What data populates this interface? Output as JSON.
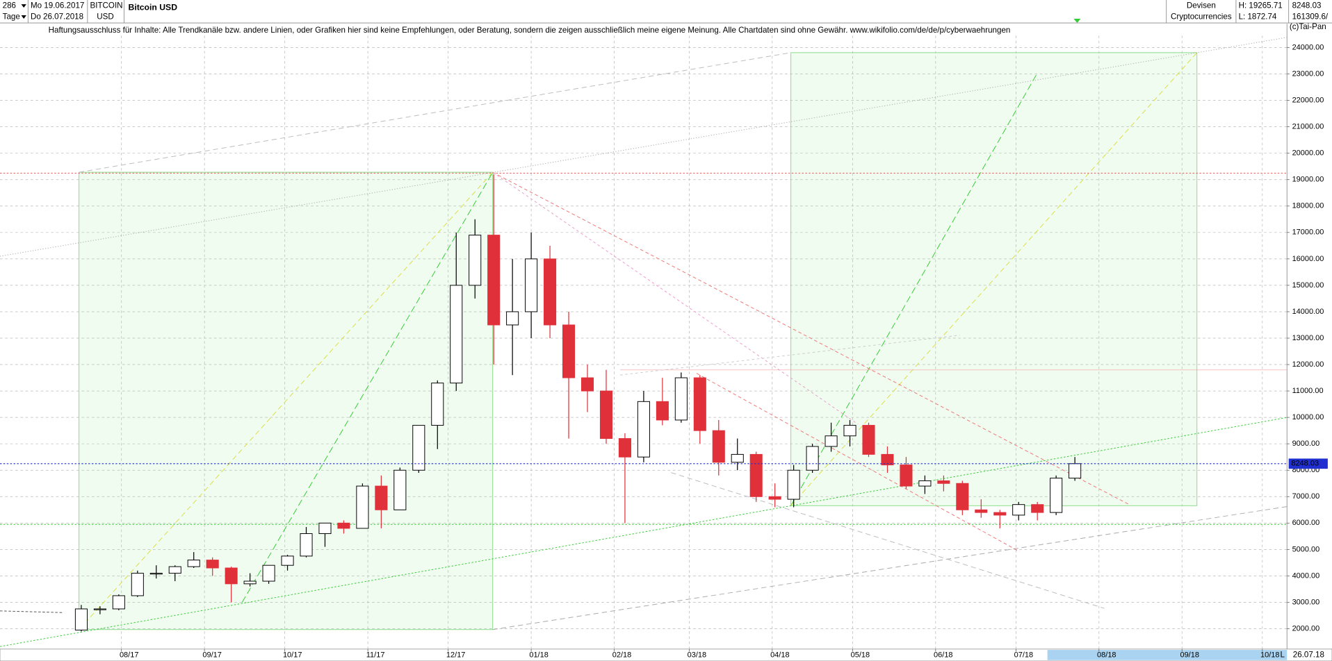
{
  "header": {
    "count": "286",
    "period": "Tage",
    "start": "Mo 19.06.2017",
    "end": "Do 26.07.2018",
    "symbol": "BITCOIN",
    "currency": "USD",
    "group": "Devisen",
    "subgroup": "Cryptocurrencies",
    "high": "H: 19265.71",
    "low": "L: 1872.74",
    "last": "8248.03",
    "volume": "161309.6/",
    "copyright": "(c)Tai-Pan",
    "date": "26.07.18",
    "scale": "L"
  },
  "chart_data": {
    "type": "candlestick",
    "title": "Bitcoin USD",
    "subtitle": "Haftungsausschluss für Inhalte: Alle Trendkanäle bzw. andere Linien, oder Grafiken hier sind keine Empfehlungen, oder Beratung, sondern die zeigen ausschließlich meine eigene Meinung. Alle Chartdaten sind ohne Gewähr.  www.wikifolio.com/de/de/p/cyberwaehrungen",
    "x": [
      28,
      35,
      42,
      49,
      56,
      63,
      70,
      77,
      84,
      91,
      98,
      105,
      112,
      119,
      126,
      133,
      140,
      147,
      154,
      161,
      168,
      175,
      182,
      189,
      196,
      203,
      210,
      217,
      224,
      231,
      238,
      245,
      252,
      259,
      266,
      273,
      280,
      287,
      294,
      301,
      308,
      315,
      322,
      329,
      336,
      343,
      350,
      357,
      364,
      371,
      378,
      385,
      392,
      399
    ],
    "open": [
      1950,
      2750,
      2750,
      3250,
      4100,
      4100,
      4350,
      4600,
      4300,
      3700,
      3800,
      4400,
      4750,
      5600,
      6000,
      5800,
      7400,
      6500,
      8000,
      9700,
      11300,
      15000,
      16900,
      13500,
      14000,
      16000,
      13500,
      11500,
      11000,
      9200,
      8500,
      10600,
      9900,
      11500,
      9500,
      8300,
      8600,
      7000,
      6900,
      8000,
      8900,
      9300,
      9700,
      8600,
      8200,
      7400,
      7600,
      7500,
      6500,
      6400,
      6300,
      6700,
      6400,
      7700
    ],
    "high": [
      2900,
      2850,
      3300,
      4200,
      4400,
      4400,
      4900,
      4700,
      4350,
      4100,
      4400,
      4800,
      5850,
      6000,
      6100,
      7500,
      7800,
      8100,
      9700,
      11400,
      17000,
      17500,
      19200,
      16000,
      17000,
      16500,
      14000,
      12000,
      11800,
      9400,
      11000,
      11500,
      11700,
      11600,
      9900,
      9200,
      8700,
      7500,
      8200,
      9000,
      9800,
      9900,
      9800,
      8900,
      8500,
      7800,
      7800,
      7600,
      6900,
      6500,
      6800,
      6800,
      7800,
      8500
    ],
    "low": [
      1900,
      2550,
      2700,
      3200,
      3900,
      3800,
      4300,
      4000,
      3000,
      3600,
      3700,
      4200,
      4700,
      5100,
      5600,
      5800,
      5800,
      6500,
      7900,
      8800,
      11000,
      14500,
      12000,
      11600,
      13000,
      13000,
      9200,
      10200,
      9000,
      6000,
      8300,
      9700,
      9800,
      9000,
      7800,
      8000,
      6800,
      6600,
      6600,
      7900,
      8700,
      8900,
      8500,
      7900,
      7300,
      7100,
      7200,
      6300,
      6200,
      5800,
      6100,
      6100,
      6300,
      7600
    ],
    "close": [
      2750,
      2750,
      3250,
      4100,
      4100,
      4350,
      4600,
      4300,
      3700,
      3800,
      4400,
      4750,
      5600,
      6000,
      5800,
      7400,
      6500,
      8000,
      9700,
      11300,
      15000,
      16900,
      13500,
      14000,
      16000,
      13500,
      11500,
      11000,
      9200,
      8500,
      10600,
      9900,
      11500,
      9500,
      8300,
      8600,
      7000,
      6900,
      8000,
      8900,
      9300,
      9700,
      8600,
      8200,
      7400,
      7600,
      7500,
      6500,
      6400,
      6300,
      6700,
      6400,
      7700,
      8248.03
    ],
    "up_color": "#000000",
    "down_color": "#e0303a",
    "xlim": [
      -2.35,
      478.2
    ],
    "ylim": [
      1229,
      24450
    ],
    "grid": true,
    "xticks": [
      {
        "value": 43,
        "label": "08/17"
      },
      {
        "value": 74,
        "label": "09/17"
      },
      {
        "value": 104,
        "label": "10/17"
      },
      {
        "value": 135,
        "label": "11/17"
      },
      {
        "value": 165,
        "label": "12/17"
      },
      {
        "value": 196,
        "label": "01/18"
      },
      {
        "value": 227,
        "label": "02/18"
      },
      {
        "value": 255,
        "label": "03/18"
      },
      {
        "value": 286,
        "label": "04/18"
      },
      {
        "value": 316,
        "label": "05/18"
      },
      {
        "value": 347,
        "label": "06/18"
      },
      {
        "value": 377,
        "label": "07/18"
      },
      {
        "value": 408,
        "label": "08/18"
      },
      {
        "value": 439,
        "label": "09/18"
      },
      {
        "value": 469,
        "label": "10/18"
      }
    ],
    "yticks": [
      {
        "value": 2000,
        "label": "2000.00"
      },
      {
        "value": 3000,
        "label": "3000.00"
      },
      {
        "value": 4000,
        "label": "4000.00"
      },
      {
        "value": 5000,
        "label": "5000.00"
      },
      {
        "value": 6000,
        "label": "6000.00"
      },
      {
        "value": 7000,
        "label": "7000.00"
      },
      {
        "value": 8000,
        "label": "8000.00"
      },
      {
        "value": 9000,
        "label": "9000.00"
      },
      {
        "value": 10000,
        "label": "10000.00"
      },
      {
        "value": 11000,
        "label": "11000.00"
      },
      {
        "value": 12000,
        "label": "12000.00"
      },
      {
        "value": 13000,
        "label": "13000.00"
      },
      {
        "value": 14000,
        "label": "14000.00"
      },
      {
        "value": 15000,
        "label": "15000.00"
      },
      {
        "value": 16000,
        "label": "16000.00"
      },
      {
        "value": 17000,
        "label": "17000.00"
      },
      {
        "value": 18000,
        "label": "18000.00"
      },
      {
        "value": 19000,
        "label": "19000.00"
      },
      {
        "value": 20000,
        "label": "20000.00"
      },
      {
        "value": 21000,
        "label": "21000.00"
      },
      {
        "value": 22000,
        "label": "22000.00"
      },
      {
        "value": 23000,
        "label": "23000.00"
      },
      {
        "value": 24000,
        "label": "24000.00"
      }
    ],
    "last_price": {
      "value": 8248.03,
      "label": "8248.03"
    },
    "last_color": "#1f2fd0"
  }
}
